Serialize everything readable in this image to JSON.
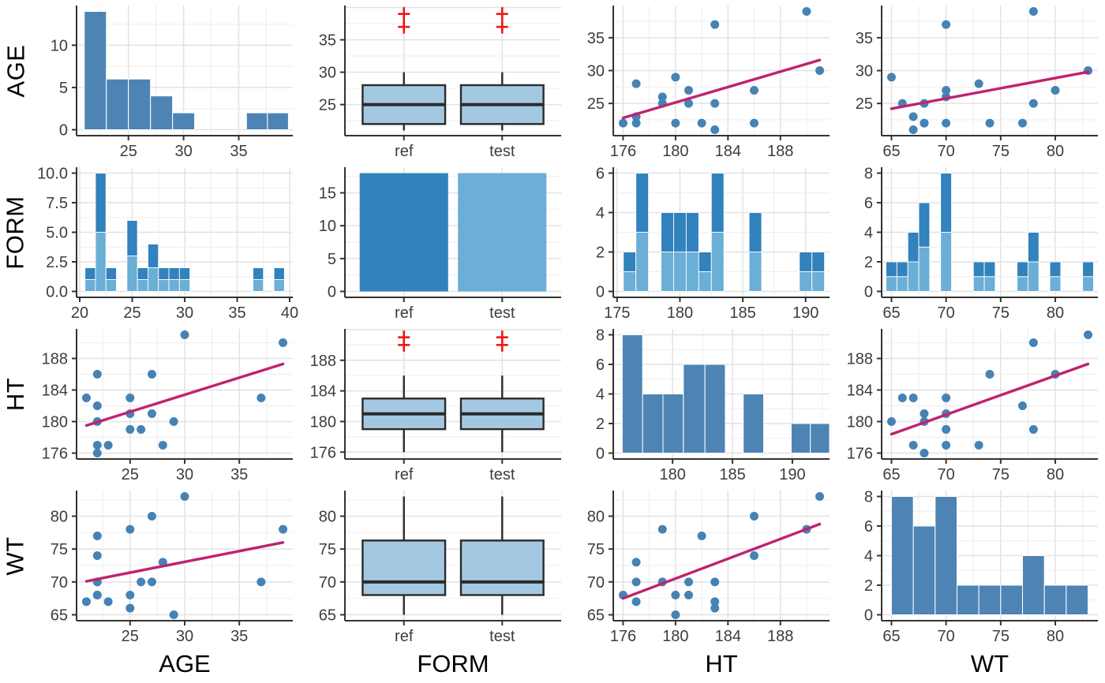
{
  "figure": {
    "kind": "pairs_matrix",
    "row_labels": [
      "AGE",
      "FORM",
      "HT",
      "WT"
    ],
    "col_titles": [
      "AGE",
      "FORM",
      "HT",
      "WT"
    ],
    "form_levels": [
      "ref",
      "test"
    ],
    "colors": {
      "bar": "#4d84b4",
      "dark": "#3182bd",
      "light": "#6baed6",
      "box_fill": "#a3c8e2",
      "box_line": "#2b2b2b",
      "point": "#4682b4",
      "trend": "#c0226e",
      "outlier": "#f01414",
      "grid_major": "#e2e2e2",
      "grid_minor": "#f0f0f0",
      "axis": "#333333",
      "tick_text": "#3d3d3d",
      "title_text": "#000000"
    }
  },
  "chart_data": [
    {
      "id": "age-age",
      "row": "AGE",
      "col": "AGE",
      "type": "histogram",
      "xlim": [
        20.3,
        39.9
      ],
      "ylim": [
        -0.7,
        14.7
      ],
      "xticks": [
        25,
        30,
        35
      ],
      "yticks": [
        0,
        5,
        10
      ],
      "bars": [
        [
          21,
          23,
          14
        ],
        [
          23,
          25,
          6
        ],
        [
          25,
          27,
          6
        ],
        [
          27,
          29,
          4
        ],
        [
          29,
          31,
          2
        ],
        [
          35.7,
          37.6,
          2
        ],
        [
          37.6,
          39.5,
          2
        ]
      ]
    },
    {
      "id": "age-form",
      "row": "AGE",
      "col": "FORM",
      "type": "boxplot",
      "categories": [
        "ref",
        "test"
      ],
      "ylim": [
        20.2,
        40.3
      ],
      "yticks": [
        25,
        30,
        35
      ],
      "stats": {
        "lo": 21,
        "q1": 22,
        "med": 25,
        "q3": 28,
        "hi": 30
      },
      "outliers": [
        37,
        39
      ]
    },
    {
      "id": "age-ht",
      "row": "AGE",
      "col": "HT",
      "type": "scatter",
      "xlim": [
        175.25,
        191.75
      ],
      "ylim": [
        20.1,
        39.9
      ],
      "xticks": [
        176,
        180,
        184,
        188
      ],
      "yticks": [
        25,
        30,
        35
      ],
      "points": [
        [
          183,
          21
        ],
        [
          186,
          22
        ],
        [
          182,
          22
        ],
        [
          180,
          22
        ],
        [
          177,
          22
        ],
        [
          176,
          22
        ],
        [
          177,
          23
        ],
        [
          183,
          25
        ],
        [
          181,
          25
        ],
        [
          179,
          25
        ],
        [
          179,
          26
        ],
        [
          186,
          27
        ],
        [
          181,
          27
        ],
        [
          177,
          28
        ],
        [
          180,
          29
        ],
        [
          191,
          30
        ],
        [
          183,
          37
        ],
        [
          190,
          39
        ]
      ],
      "trend": [
        [
          176,
          22.8
        ],
        [
          191,
          31.6
        ]
      ]
    },
    {
      "id": "age-wt",
      "row": "AGE",
      "col": "WT",
      "type": "scatter",
      "xlim": [
        64.1,
        83.9
      ],
      "ylim": [
        20.1,
        39.9
      ],
      "xticks": [
        65,
        70,
        75,
        80
      ],
      "yticks": [
        25,
        30,
        35
      ],
      "points": [
        [
          67,
          21
        ],
        [
          77,
          22
        ],
        [
          74,
          22
        ],
        [
          70,
          22
        ],
        [
          68,
          22
        ],
        [
          68,
          22
        ],
        [
          67,
          23
        ],
        [
          78,
          25
        ],
        [
          68,
          25
        ],
        [
          66,
          25
        ],
        [
          70,
          26
        ],
        [
          80,
          27
        ],
        [
          70,
          27
        ],
        [
          73,
          28
        ],
        [
          65,
          29
        ],
        [
          83,
          30
        ],
        [
          70,
          37
        ],
        [
          78,
          39
        ]
      ],
      "trend": [
        [
          65,
          24.2
        ],
        [
          83,
          29.8
        ]
      ]
    },
    {
      "id": "form-age",
      "row": "FORM",
      "col": "AGE",
      "type": "stacked_histogram",
      "xlim": [
        19.7,
        40.3
      ],
      "ylim": [
        -0.5,
        10.5
      ],
      "xticks": [
        20,
        25,
        30,
        35,
        40
      ],
      "yticks": [
        0,
        2.5,
        5,
        7.5,
        10
      ],
      "ytick_labels": [
        "0.0",
        "2.5",
        "5.0",
        "7.5",
        "10.0"
      ],
      "bars": [
        [
          20.5,
          21.5,
          1,
          1
        ],
        [
          21.5,
          22.5,
          5,
          5
        ],
        [
          22.5,
          23.5,
          1,
          1
        ],
        [
          24.5,
          25.5,
          3,
          3
        ],
        [
          25.5,
          26.5,
          1,
          1
        ],
        [
          26.5,
          27.5,
          2,
          2
        ],
        [
          27.5,
          28.5,
          1,
          1
        ],
        [
          28.5,
          29.5,
          1,
          1
        ],
        [
          29.5,
          30.5,
          1,
          1
        ],
        [
          36.5,
          37.5,
          1,
          1
        ],
        [
          38.5,
          39.5,
          1,
          1
        ]
      ]
    },
    {
      "id": "form-form",
      "row": "FORM",
      "col": "FORM",
      "type": "bar",
      "categories": [
        "ref",
        "test"
      ],
      "values": [
        18,
        18
      ],
      "ylim": [
        -0.9,
        18.9
      ],
      "yticks": [
        0,
        5,
        10,
        15
      ]
    },
    {
      "id": "form-ht",
      "row": "FORM",
      "col": "HT",
      "type": "stacked_histogram",
      "xlim": [
        174.7,
        191.9
      ],
      "ylim": [
        -0.3,
        6.3
      ],
      "xticks": [
        175,
        180,
        185,
        190
      ],
      "yticks": [
        0,
        2,
        4,
        6
      ],
      "bars": [
        [
          175.5,
          176.5,
          1,
          1
        ],
        [
          176.5,
          177.5,
          3,
          3
        ],
        [
          178.5,
          179.5,
          2,
          2
        ],
        [
          179.5,
          180.5,
          2,
          2
        ],
        [
          180.5,
          181.5,
          2,
          2
        ],
        [
          181.5,
          182.5,
          1,
          1
        ],
        [
          182.5,
          183.5,
          3,
          3
        ],
        [
          185.5,
          186.5,
          2,
          2
        ],
        [
          189.5,
          190.5,
          1,
          1
        ],
        [
          190.5,
          191.5,
          1,
          1
        ]
      ]
    },
    {
      "id": "form-wt",
      "row": "FORM",
      "col": "WT",
      "type": "stacked_histogram",
      "xlim": [
        64.1,
        83.9
      ],
      "ylim": [
        -0.4,
        8.4
      ],
      "xticks": [
        65,
        70,
        75,
        80
      ],
      "yticks": [
        0,
        2,
        4,
        6,
        8
      ],
      "bars": [
        [
          64.5,
          65.5,
          1,
          1
        ],
        [
          65.5,
          66.5,
          1,
          1
        ],
        [
          66.5,
          67.5,
          2,
          2
        ],
        [
          67.5,
          68.5,
          3,
          3
        ],
        [
          69.5,
          70.5,
          4,
          4
        ],
        [
          72.5,
          73.5,
          1,
          1
        ],
        [
          73.5,
          74.5,
          1,
          1
        ],
        [
          76.5,
          77.5,
          1,
          1
        ],
        [
          77.5,
          78.5,
          2,
          2
        ],
        [
          79.5,
          80.5,
          1,
          1
        ],
        [
          82.5,
          83.5,
          1,
          1
        ]
      ]
    },
    {
      "id": "ht-age",
      "row": "HT",
      "col": "AGE",
      "type": "scatter",
      "xlim": [
        20.1,
        39.9
      ],
      "ylim": [
        175.25,
        191.75
      ],
      "xticks": [
        25,
        30,
        35
      ],
      "yticks": [
        176,
        180,
        184,
        188
      ],
      "points": [
        [
          21,
          183
        ],
        [
          22,
          186
        ],
        [
          22,
          182
        ],
        [
          22,
          180
        ],
        [
          22,
          177
        ],
        [
          22,
          176
        ],
        [
          23,
          177
        ],
        [
          25,
          183
        ],
        [
          25,
          181
        ],
        [
          25,
          179
        ],
        [
          26,
          179
        ],
        [
          27,
          186
        ],
        [
          27,
          181
        ],
        [
          28,
          177
        ],
        [
          29,
          180
        ],
        [
          30,
          191
        ],
        [
          37,
          183
        ],
        [
          39,
          190
        ]
      ],
      "trend": [
        [
          21,
          179.5
        ],
        [
          39,
          187.3
        ]
      ]
    },
    {
      "id": "ht-form",
      "row": "HT",
      "col": "FORM",
      "type": "boxplot",
      "categories": [
        "ref",
        "test"
      ],
      "ylim": [
        175.1,
        192.1
      ],
      "yticks": [
        176,
        180,
        184,
        188
      ],
      "stats": {
        "lo": 176,
        "q1": 179,
        "med": 181,
        "q3": 183,
        "hi": 186
      },
      "outliers": [
        190,
        191
      ]
    },
    {
      "id": "ht-ht",
      "row": "HT",
      "col": "HT",
      "type": "histogram",
      "xlim": [
        175.05,
        193.1
      ],
      "ylim": [
        -0.4,
        8.4
      ],
      "xticks": [
        180,
        185,
        190
      ],
      "yticks": [
        0,
        2,
        4,
        6,
        8
      ],
      "bars": [
        [
          175.8,
          177.5,
          8
        ],
        [
          177.5,
          179.2,
          4
        ],
        [
          179.2,
          180.9,
          4
        ],
        [
          180.9,
          182.7,
          6
        ],
        [
          182.7,
          184.4,
          6
        ],
        [
          185.9,
          187.6,
          4
        ],
        [
          189.9,
          191.5,
          2
        ],
        [
          191.5,
          193.1,
          2
        ]
      ]
    },
    {
      "id": "ht-wt",
      "row": "HT",
      "col": "WT",
      "type": "scatter",
      "xlim": [
        64.1,
        83.9
      ],
      "ylim": [
        175.25,
        191.75
      ],
      "xticks": [
        65,
        70,
        75,
        80
      ],
      "yticks": [
        176,
        180,
        184,
        188
      ],
      "points": [
        [
          68,
          176
        ],
        [
          73,
          177
        ],
        [
          70,
          177
        ],
        [
          67,
          177
        ],
        [
          78,
          179
        ],
        [
          70,
          179
        ],
        [
          68,
          180
        ],
        [
          65,
          180
        ],
        [
          70,
          181
        ],
        [
          68,
          181
        ],
        [
          77,
          182
        ],
        [
          70,
          183
        ],
        [
          67,
          183
        ],
        [
          66,
          183
        ],
        [
          80,
          186
        ],
        [
          74,
          186
        ],
        [
          78,
          190
        ],
        [
          83,
          191
        ]
      ],
      "trend": [
        [
          65,
          178.4
        ],
        [
          83,
          187.3
        ]
      ]
    },
    {
      "id": "wt-age",
      "row": "WT",
      "col": "AGE",
      "type": "scatter",
      "xtitle": "AGE",
      "xlim": [
        20.1,
        39.9
      ],
      "ylim": [
        64.1,
        83.9
      ],
      "xticks": [
        25,
        30,
        35
      ],
      "yticks": [
        65,
        70,
        75,
        80
      ],
      "points": [
        [
          21,
          67
        ],
        [
          22,
          77
        ],
        [
          22,
          74
        ],
        [
          22,
          70
        ],
        [
          22,
          68
        ],
        [
          22,
          68
        ],
        [
          23,
          67
        ],
        [
          25,
          78
        ],
        [
          25,
          68
        ],
        [
          25,
          66
        ],
        [
          26,
          70
        ],
        [
          27,
          80
        ],
        [
          27,
          70
        ],
        [
          28,
          73
        ],
        [
          29,
          65
        ],
        [
          30,
          83
        ],
        [
          37,
          70
        ],
        [
          39,
          78
        ]
      ],
      "trend": [
        [
          21,
          70.1
        ],
        [
          39,
          76.0
        ]
      ]
    },
    {
      "id": "wt-form",
      "row": "WT",
      "col": "FORM",
      "type": "boxplot",
      "xtitle": "FORM",
      "categories": [
        "ref",
        "test"
      ],
      "ylim": [
        64.1,
        83.9
      ],
      "yticks": [
        65,
        70,
        75,
        80
      ],
      "stats": {
        "lo": 65,
        "q1": 68,
        "med": 70,
        "q3": 76.3,
        "hi": 83
      },
      "outliers": []
    },
    {
      "id": "wt-ht",
      "row": "WT",
      "col": "HT",
      "type": "scatter",
      "xtitle": "HT",
      "xlim": [
        175.25,
        191.75
      ],
      "ylim": [
        64.1,
        83.9
      ],
      "xticks": [
        176,
        180,
        184,
        188
      ],
      "yticks": [
        65,
        70,
        75,
        80
      ],
      "points": [
        [
          176,
          68
        ],
        [
          177,
          73
        ],
        [
          177,
          70
        ],
        [
          177,
          67
        ],
        [
          179,
          78
        ],
        [
          179,
          70
        ],
        [
          180,
          68
        ],
        [
          180,
          65
        ],
        [
          181,
          70
        ],
        [
          181,
          68
        ],
        [
          182,
          77
        ],
        [
          183,
          70
        ],
        [
          183,
          67
        ],
        [
          183,
          66
        ],
        [
          186,
          80
        ],
        [
          186,
          74
        ],
        [
          190,
          78
        ],
        [
          191,
          83
        ]
      ],
      "trend": [
        [
          176,
          67.5
        ],
        [
          191,
          78.8
        ]
      ]
    },
    {
      "id": "wt-wt",
      "row": "WT",
      "col": "WT",
      "type": "histogram",
      "xtitle": "WT",
      "xlim": [
        64.1,
        83.9
      ],
      "ylim": [
        -0.4,
        8.4
      ],
      "xticks": [
        65,
        70,
        75,
        80
      ],
      "yticks": [
        0,
        2,
        4,
        6,
        8
      ],
      "bars": [
        [
          65,
          67,
          8
        ],
        [
          67,
          69,
          6
        ],
        [
          69,
          71,
          8
        ],
        [
          71,
          73,
          2
        ],
        [
          73,
          75,
          2
        ],
        [
          75,
          77,
          2
        ],
        [
          77,
          79,
          4
        ],
        [
          79,
          81,
          2
        ],
        [
          81,
          83,
          2
        ]
      ]
    }
  ]
}
